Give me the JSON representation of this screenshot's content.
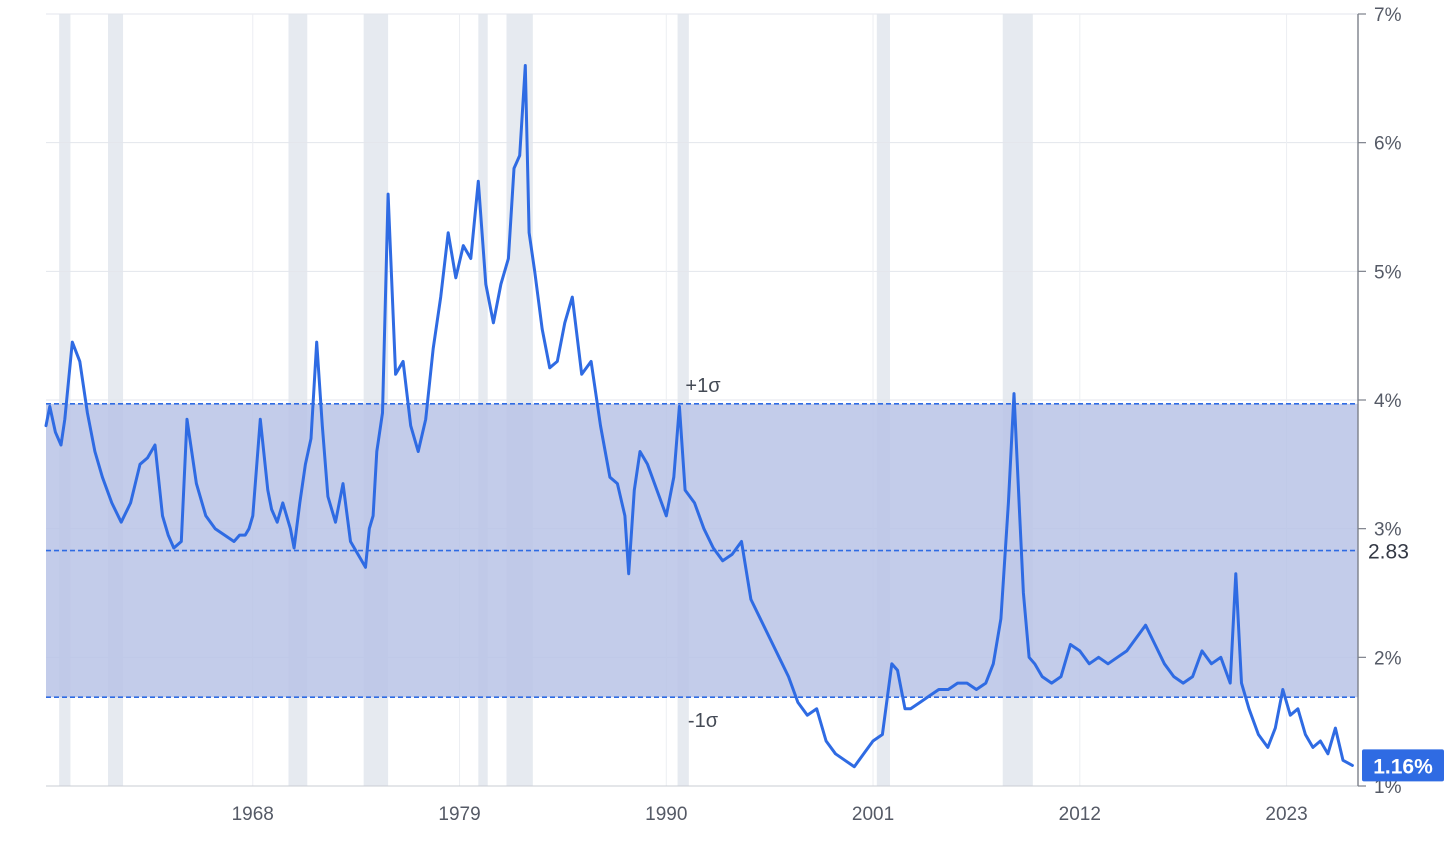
{
  "chart_data": {
    "type": "line",
    "title": "",
    "xlabel": "",
    "ylabel": "",
    "x_ticks": [
      "1968",
      "1979",
      "1990",
      "2001",
      "2012",
      "2023"
    ],
    "y_ticks": [
      "1%",
      "2%",
      "3%",
      "4%",
      "5%",
      "6%",
      "7%"
    ],
    "xlim": [
      1957.0,
      2026.8
    ],
    "ylim": [
      1,
      7
    ],
    "grid": true,
    "colors": {
      "line": "#2f6be3",
      "band": "#b9c3e6",
      "recession": "#e6eaf0",
      "label_bg": "#2f6be3"
    },
    "mean": {
      "value": 2.83,
      "label": "2.83"
    },
    "plus_one_sigma": {
      "value": 3.97,
      "label": "+1σ"
    },
    "minus_one_sigma": {
      "value": 1.69,
      "label": "-1σ"
    },
    "last_value": {
      "value": 1.16,
      "label": "1.16%"
    },
    "recessions": [
      [
        1957.7,
        1958.3
      ],
      [
        1960.3,
        1961.1
      ],
      [
        1969.9,
        1970.9
      ],
      [
        1973.9,
        1975.2
      ],
      [
        1980.0,
        1980.5
      ],
      [
        1981.5,
        1982.9
      ],
      [
        1990.6,
        1991.2
      ],
      [
        2001.2,
        2001.9
      ],
      [
        2007.9,
        2009.5
      ]
    ],
    "series": [
      {
        "x": [
          1957.0,
          1957.2,
          1957.5,
          1957.8,
          1958.0,
          1958.4,
          1958.8,
          1959.2,
          1959.6,
          1960.0,
          1960.5,
          1961.0,
          1961.5,
          1962.0,
          1962.4,
          1962.8,
          1963.2,
          1963.5,
          1963.8,
          1964.2,
          1964.5,
          1965.0,
          1965.5,
          1966.0,
          1966.5,
          1967.0,
          1967.3,
          1967.6,
          1967.8,
          1968.0,
          1968.4,
          1968.8,
          1969.0,
          1969.3,
          1969.6,
          1970.0,
          1970.2,
          1970.5,
          1970.8,
          1971.1,
          1971.4,
          1971.7,
          1972.0,
          1972.4,
          1972.8,
          1973.2,
          1973.6,
          1974.0,
          1974.2,
          1974.4,
          1974.6,
          1974.9,
          1975.2,
          1975.6,
          1976.0,
          1976.4,
          1976.8,
          1977.2,
          1977.6,
          1978.0,
          1978.4,
          1978.8,
          1979.2,
          1979.6,
          1980.0,
          1980.4,
          1980.8,
          1981.2,
          1981.6,
          1981.9,
          1982.2,
          1982.5,
          1982.7,
          1983.0,
          1983.4,
          1983.8,
          1984.2,
          1984.6,
          1985.0,
          1985.5,
          1986.0,
          1986.5,
          1987.0,
          1987.4,
          1987.8,
          1988.0,
          1988.3,
          1988.6,
          1989.0,
          1989.5,
          1990.0,
          1990.4,
          1990.7,
          1991.0,
          1991.5,
          1992.0,
          1992.5,
          1993.0,
          1993.5,
          1994.0,
          1994.5,
          1995.0,
          1995.5,
          1996.0,
          1996.5,
          1997.0,
          1997.5,
          1998.0,
          1998.5,
          1999.0,
          1999.5,
          2000.0,
          2000.5,
          2001.0,
          2001.5,
          2002.0,
          2002.3,
          2002.7,
          2003.0,
          2003.5,
          2004.0,
          2004.5,
          2005.0,
          2005.5,
          2006.0,
          2006.5,
          2007.0,
          2007.4,
          2007.8,
          2008.2,
          2008.5,
          2008.8,
          2009.0,
          2009.3,
          2009.6,
          2010.0,
          2010.5,
          2011.0,
          2011.5,
          2012.0,
          2012.5,
          2013.0,
          2013.5,
          2014.0,
          2014.5,
          2015.0,
          2015.5,
          2016.0,
          2016.5,
          2017.0,
          2017.5,
          2018.0,
          2018.5,
          2019.0,
          2019.5,
          2020.0,
          2020.3,
          2020.6,
          2021.0,
          2021.5,
          2022.0,
          2022.4,
          2022.8,
          2023.2,
          2023.6,
          2024.0,
          2024.4,
          2024.8,
          2025.2,
          2025.6,
          2026.0,
          2026.5
        ],
        "values": [
          3.8,
          3.95,
          3.75,
          3.65,
          3.85,
          4.45,
          4.3,
          3.9,
          3.6,
          3.4,
          3.2,
          3.05,
          3.2,
          3.5,
          3.55,
          3.65,
          3.1,
          2.95,
          2.85,
          2.9,
          3.85,
          3.35,
          3.1,
          3.0,
          2.95,
          2.9,
          2.95,
          2.95,
          3.0,
          3.1,
          3.85,
          3.3,
          3.15,
          3.05,
          3.2,
          3.0,
          2.85,
          3.2,
          3.5,
          3.7,
          4.45,
          3.8,
          3.25,
          3.05,
          3.35,
          2.9,
          2.8,
          2.7,
          3.0,
          3.1,
          3.6,
          3.9,
          5.6,
          4.2,
          4.3,
          3.8,
          3.6,
          3.85,
          4.4,
          4.8,
          5.3,
          4.95,
          5.2,
          5.1,
          5.7,
          4.9,
          4.6,
          4.9,
          5.1,
          5.8,
          5.9,
          6.6,
          5.3,
          5.0,
          4.55,
          4.25,
          4.3,
          4.6,
          4.8,
          4.2,
          4.3,
          3.8,
          3.4,
          3.35,
          3.1,
          2.65,
          3.3,
          3.6,
          3.5,
          3.3,
          3.1,
          3.4,
          3.95,
          3.3,
          3.2,
          3.0,
          2.85,
          2.75,
          2.8,
          2.9,
          2.45,
          2.3,
          2.15,
          2.0,
          1.85,
          1.65,
          1.55,
          1.6,
          1.35,
          1.25,
          1.2,
          1.15,
          1.25,
          1.35,
          1.4,
          1.95,
          1.9,
          1.6,
          1.6,
          1.65,
          1.7,
          1.75,
          1.75,
          1.8,
          1.8,
          1.75,
          1.8,
          1.95,
          2.3,
          3.2,
          4.05,
          3.1,
          2.5,
          2.0,
          1.95,
          1.85,
          1.8,
          1.85,
          2.1,
          2.05,
          1.95,
          2.0,
          1.95,
          2.0,
          2.05,
          2.15,
          2.25,
          2.1,
          1.95,
          1.85,
          1.8,
          1.85,
          2.05,
          1.95,
          2.0,
          1.8,
          2.65,
          1.8,
          1.6,
          1.4,
          1.3,
          1.45,
          1.75,
          1.55,
          1.6,
          1.4,
          1.3,
          1.35,
          1.25,
          1.45,
          1.2,
          1.16
        ]
      }
    ]
  }
}
